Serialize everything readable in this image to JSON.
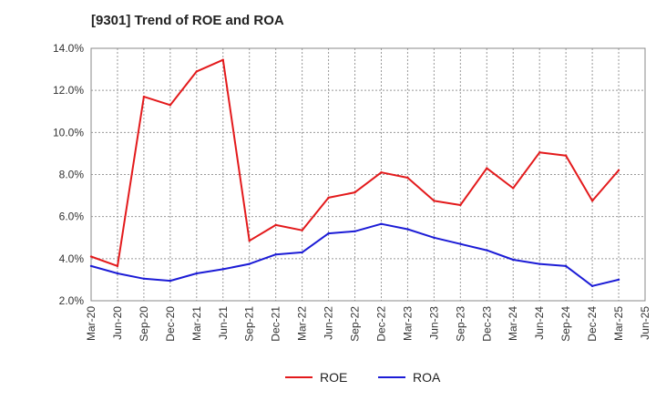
{
  "chart_data": {
    "type": "line",
    "title": "[9301]  Trend of ROE and ROA",
    "xlabel": "",
    "ylabel": "",
    "ylim": [
      2.0,
      14.0
    ],
    "yticks": [
      "2.0%",
      "4.0%",
      "6.0%",
      "8.0%",
      "10.0%",
      "12.0%",
      "14.0%"
    ],
    "ytick_values": [
      2,
      4,
      6,
      8,
      10,
      12,
      14
    ],
    "x_labels": [
      "Mar-20",
      "Jun-20",
      "Sep-20",
      "Dec-20",
      "Mar-21",
      "Jun-21",
      "Sep-21",
      "Dec-21",
      "Mar-22",
      "Jun-22",
      "Sep-22",
      "Dec-22",
      "Mar-23",
      "Jun-23",
      "Sep-23",
      "Dec-23",
      "Mar-24",
      "Jun-24",
      "Sep-24",
      "Dec-24",
      "Mar-25",
      "Jun-25"
    ],
    "categories": [
      "Mar-20",
      "Jun-20",
      "Sep-20",
      "Dec-20",
      "Mar-21",
      "Jun-21",
      "Sep-21",
      "Dec-21",
      "Mar-22",
      "Jun-22",
      "Sep-22",
      "Dec-22",
      "Mar-23",
      "Jun-23",
      "Sep-23",
      "Dec-23",
      "Mar-24",
      "Jun-24",
      "Sep-24",
      "Dec-24",
      "Mar-25"
    ],
    "series": [
      {
        "name": "ROE",
        "color": "#e31a1c",
        "values": [
          4.1,
          3.65,
          11.7,
          11.3,
          12.9,
          13.45,
          4.85,
          5.6,
          5.35,
          6.9,
          7.15,
          8.1,
          7.85,
          6.75,
          6.55,
          8.3,
          7.35,
          9.05,
          8.9,
          6.75,
          8.2
        ]
      },
      {
        "name": "ROA",
        "color": "#1c1cd6",
        "values": [
          3.65,
          3.3,
          3.05,
          2.95,
          3.3,
          3.5,
          3.75,
          4.2,
          4.3,
          5.2,
          5.3,
          5.65,
          5.4,
          5.0,
          4.7,
          4.4,
          3.95,
          3.75,
          3.65,
          2.7,
          3.0
        ]
      }
    ],
    "grid": true,
    "legend_position": "bottom"
  }
}
